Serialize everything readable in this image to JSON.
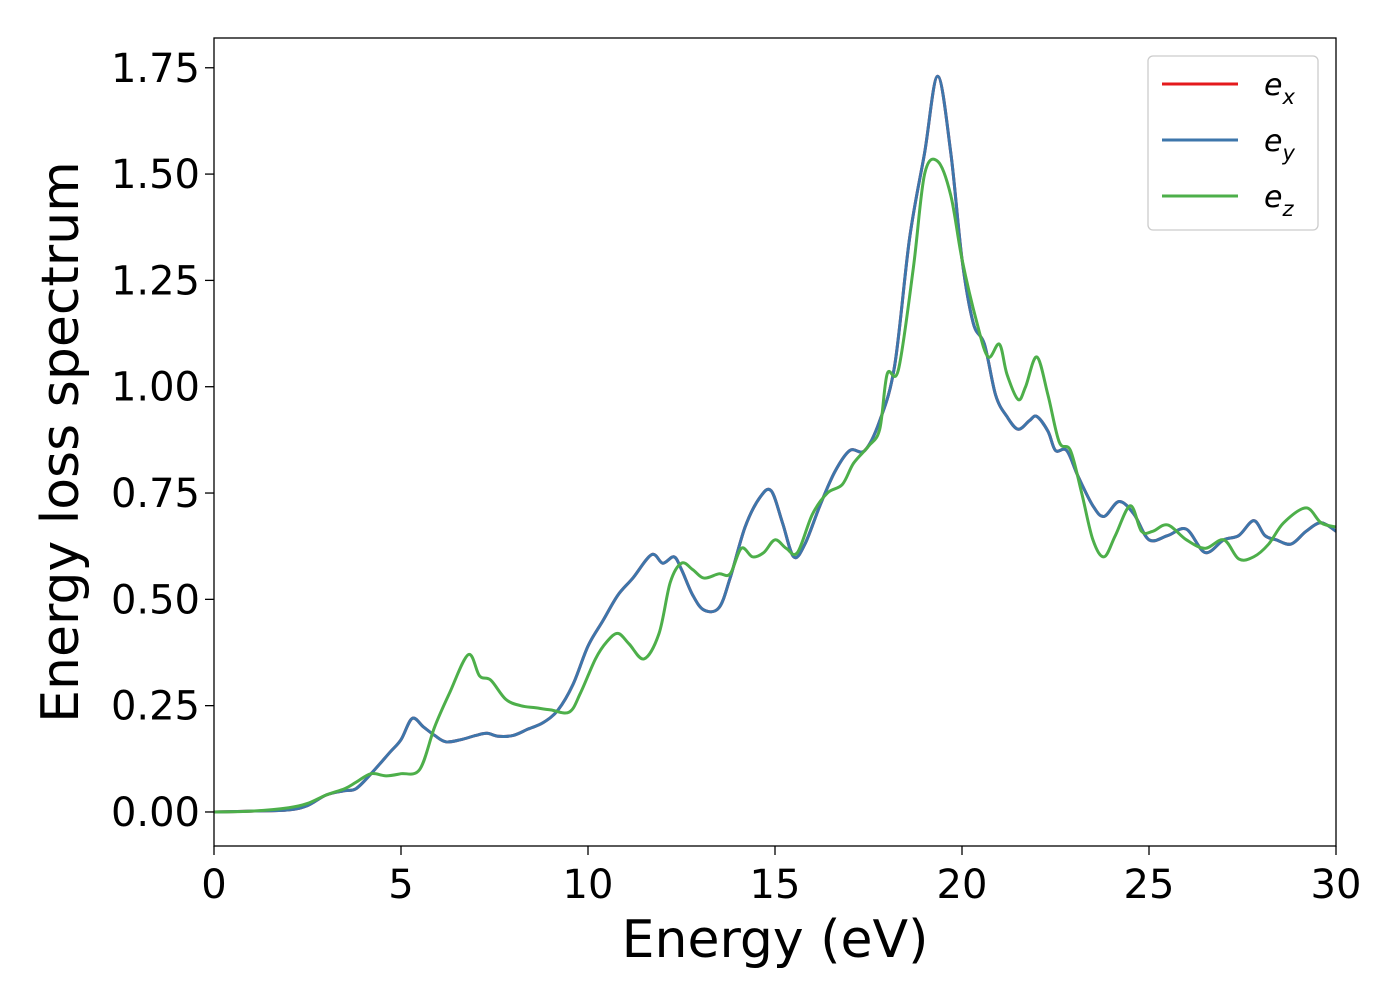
{
  "chart_data": {
    "type": "line",
    "title": "",
    "xlabel": "Energy (eV)",
    "ylabel": "Energy loss spectrum",
    "xlim": [
      0,
      30
    ],
    "ylim": [
      -0.08,
      1.82
    ],
    "xticks": [
      0,
      5,
      10,
      15,
      20,
      25,
      30
    ],
    "xtick_labels": [
      "0",
      "5",
      "10",
      "15",
      "20",
      "25",
      "30"
    ],
    "yticks": [
      0,
      0.25,
      0.5,
      0.75,
      1.0,
      1.25,
      1.5,
      1.75
    ],
    "ytick_labels": [
      "0.00",
      "0.25",
      "0.50",
      "0.75",
      "1.00",
      "1.25",
      "1.50",
      "1.75"
    ],
    "grid": false,
    "legend_position": "top-right",
    "series": [
      {
        "name": "ex",
        "legend_main": "e",
        "legend_sub": "x",
        "color": "#e41a1c",
        "x": [
          0,
          1,
          2,
          2.5,
          3,
          3.5,
          3.8,
          4.2,
          4.7,
          5.0,
          5.3,
          5.6,
          5.9,
          6.2,
          6.6,
          7.0,
          7.3,
          7.6,
          8.0,
          8.4,
          8.8,
          9.2,
          9.6,
          10.0,
          10.4,
          10.8,
          11.2,
          11.7,
          12.0,
          12.3,
          12.5,
          12.8,
          13.1,
          13.5,
          13.8,
          14.2,
          14.6,
          14.9,
          15.2,
          15.5,
          15.8,
          16.2,
          16.6,
          17.0,
          17.4,
          17.8,
          18.2,
          18.6,
          19.0,
          19.35,
          19.7,
          20.0,
          20.3,
          20.6,
          20.9,
          21.2,
          21.5,
          21.8,
          22.0,
          22.3,
          22.5,
          22.8,
          23.1,
          23.5,
          23.8,
          24.2,
          24.6,
          25.0,
          25.5,
          26.0,
          26.5,
          27.0,
          27.4,
          27.8,
          28.1,
          28.4,
          28.8,
          29.2,
          29.6,
          30.0
        ],
        "y": [
          0,
          0.002,
          0.005,
          0.015,
          0.04,
          0.05,
          0.055,
          0.09,
          0.14,
          0.17,
          0.22,
          0.2,
          0.18,
          0.165,
          0.17,
          0.18,
          0.185,
          0.178,
          0.18,
          0.195,
          0.21,
          0.24,
          0.3,
          0.39,
          0.45,
          0.51,
          0.55,
          0.605,
          0.585,
          0.6,
          0.57,
          0.51,
          0.475,
          0.48,
          0.55,
          0.67,
          0.74,
          0.755,
          0.68,
          0.6,
          0.63,
          0.72,
          0.8,
          0.85,
          0.85,
          0.92,
          1.05,
          1.35,
          1.55,
          1.73,
          1.55,
          1.3,
          1.15,
          1.1,
          0.98,
          0.93,
          0.9,
          0.92,
          0.93,
          0.895,
          0.85,
          0.85,
          0.79,
          0.72,
          0.695,
          0.73,
          0.7,
          0.64,
          0.65,
          0.665,
          0.61,
          0.64,
          0.65,
          0.685,
          0.65,
          0.64,
          0.63,
          0.66,
          0.68,
          0.66
        ]
      },
      {
        "name": "ey",
        "legend_main": "e",
        "legend_sub": "y",
        "color": "#3d76ab",
        "x": [
          0,
          1,
          2,
          2.5,
          3,
          3.5,
          3.8,
          4.2,
          4.7,
          5.0,
          5.3,
          5.6,
          5.9,
          6.2,
          6.6,
          7.0,
          7.3,
          7.6,
          8.0,
          8.4,
          8.8,
          9.2,
          9.6,
          10.0,
          10.4,
          10.8,
          11.2,
          11.7,
          12.0,
          12.3,
          12.5,
          12.8,
          13.1,
          13.5,
          13.8,
          14.2,
          14.6,
          14.9,
          15.2,
          15.5,
          15.8,
          16.2,
          16.6,
          17.0,
          17.4,
          17.8,
          18.2,
          18.6,
          19.0,
          19.35,
          19.7,
          20.0,
          20.3,
          20.6,
          20.9,
          21.2,
          21.5,
          21.8,
          22.0,
          22.3,
          22.5,
          22.8,
          23.1,
          23.5,
          23.8,
          24.2,
          24.6,
          25.0,
          25.5,
          26.0,
          26.5,
          27.0,
          27.4,
          27.8,
          28.1,
          28.4,
          28.8,
          29.2,
          29.6,
          30.0
        ],
        "y": [
          0,
          0.002,
          0.005,
          0.015,
          0.04,
          0.05,
          0.055,
          0.09,
          0.14,
          0.17,
          0.22,
          0.2,
          0.18,
          0.165,
          0.17,
          0.18,
          0.185,
          0.178,
          0.18,
          0.195,
          0.21,
          0.24,
          0.3,
          0.39,
          0.45,
          0.51,
          0.55,
          0.605,
          0.585,
          0.6,
          0.57,
          0.51,
          0.475,
          0.48,
          0.55,
          0.67,
          0.74,
          0.755,
          0.68,
          0.6,
          0.63,
          0.72,
          0.8,
          0.85,
          0.85,
          0.92,
          1.05,
          1.35,
          1.55,
          1.73,
          1.55,
          1.3,
          1.15,
          1.1,
          0.98,
          0.93,
          0.9,
          0.92,
          0.93,
          0.895,
          0.85,
          0.85,
          0.79,
          0.72,
          0.695,
          0.73,
          0.7,
          0.64,
          0.65,
          0.665,
          0.61,
          0.64,
          0.65,
          0.685,
          0.65,
          0.64,
          0.63,
          0.66,
          0.68,
          0.66
        ]
      },
      {
        "name": "ez",
        "legend_main": "e",
        "legend_sub": "z",
        "color": "#4daf4a",
        "x": [
          0,
          1,
          2,
          2.5,
          3,
          3.5,
          3.8,
          4.2,
          4.6,
          5.0,
          5.5,
          5.9,
          6.3,
          6.8,
          7.1,
          7.4,
          7.8,
          8.2,
          8.6,
          9.0,
          9.5,
          9.8,
          10.2,
          10.5,
          10.8,
          11.1,
          11.5,
          11.9,
          12.2,
          12.5,
          12.8,
          13.1,
          13.5,
          13.8,
          14.1,
          14.4,
          14.7,
          15.0,
          15.3,
          15.6,
          16.0,
          16.4,
          16.8,
          17.1,
          17.5,
          17.8,
          18.0,
          18.3,
          18.7,
          19.0,
          19.35,
          19.7,
          20.0,
          20.4,
          20.7,
          21.0,
          21.2,
          21.5,
          21.7,
          22.0,
          22.3,
          22.6,
          22.9,
          23.2,
          23.5,
          23.8,
          24.1,
          24.5,
          24.8,
          25.1,
          25.5,
          26.0,
          26.5,
          27.0,
          27.4,
          27.8,
          28.2,
          28.6,
          29.2,
          29.6,
          30.0
        ],
        "y": [
          0,
          0.002,
          0.01,
          0.02,
          0.04,
          0.055,
          0.07,
          0.09,
          0.085,
          0.09,
          0.1,
          0.2,
          0.28,
          0.37,
          0.32,
          0.31,
          0.265,
          0.25,
          0.245,
          0.24,
          0.235,
          0.28,
          0.36,
          0.4,
          0.42,
          0.395,
          0.36,
          0.42,
          0.54,
          0.585,
          0.57,
          0.55,
          0.56,
          0.56,
          0.62,
          0.6,
          0.61,
          0.64,
          0.62,
          0.61,
          0.7,
          0.75,
          0.77,
          0.82,
          0.86,
          0.9,
          1.03,
          1.04,
          1.28,
          1.5,
          1.53,
          1.45,
          1.3,
          1.15,
          1.07,
          1.1,
          1.03,
          0.97,
          1.0,
          1.07,
          0.98,
          0.87,
          0.85,
          0.75,
          0.64,
          0.6,
          0.65,
          0.72,
          0.66,
          0.66,
          0.675,
          0.64,
          0.62,
          0.64,
          0.595,
          0.6,
          0.63,
          0.68,
          0.715,
          0.68,
          0.67
        ]
      }
    ]
  }
}
